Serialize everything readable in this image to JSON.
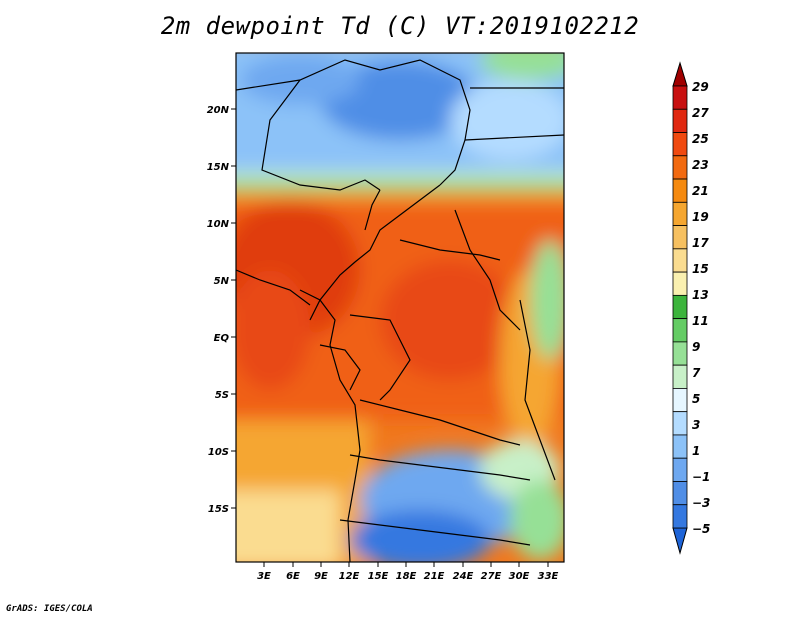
{
  "title": "2m dewpoint Td (C) VT:2019102212",
  "credit": "GrADS: IGES/COLA",
  "map": {
    "lat_labels": [
      "20N",
      "15N",
      "10N",
      "5N",
      "EQ",
      "5S",
      "10S",
      "15S"
    ],
    "lon_labels": [
      "3E",
      "6E",
      "9E",
      "12E",
      "15E",
      "18E",
      "21E",
      "24E",
      "27E",
      "30E",
      "33E"
    ]
  },
  "colorbar": {
    "labels": [
      "29",
      "27",
      "25",
      "23",
      "21",
      "19",
      "17",
      "15",
      "13",
      "11",
      "9",
      "7",
      "5",
      "3",
      "1",
      "−1",
      "−3",
      "−5"
    ],
    "colors": [
      "#a00000",
      "#c81010",
      "#e02810",
      "#f04a10",
      "#f26a10",
      "#f58a10",
      "#f5a630",
      "#f6c060",
      "#fadc90",
      "#faf0b0",
      "#3cb43c",
      "#64cc64",
      "#96e096",
      "#c8f0c8",
      "#e6f6ff",
      "#b4dcff",
      "#8cc2f8",
      "#6ea8f0",
      "#508ee6",
      "#3478e0",
      "#1e64d8"
    ]
  }
}
